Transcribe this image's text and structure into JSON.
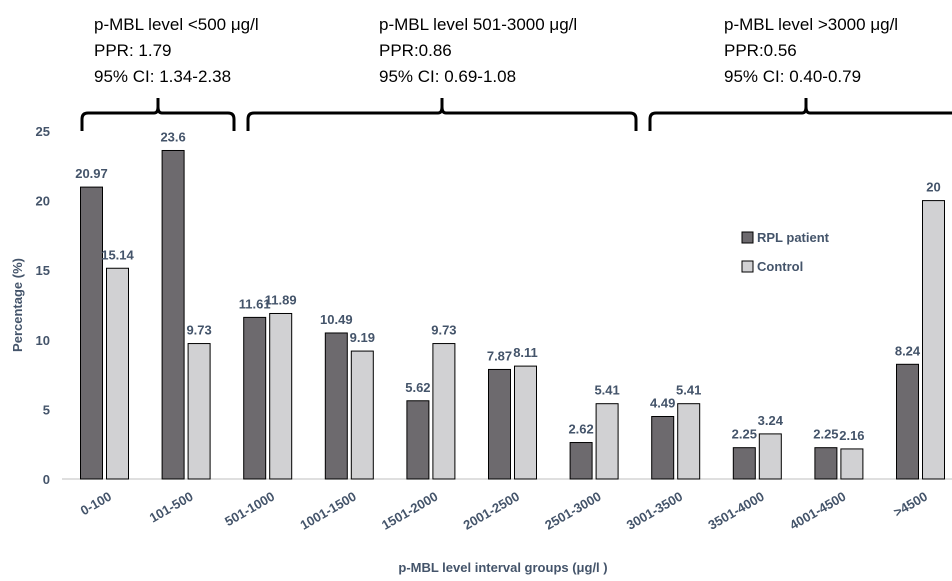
{
  "chart_data": {
    "type": "bar",
    "categories": [
      "0-100",
      "101-500",
      "501-1000",
      "1001-1500",
      "1501-2000",
      "2001-2500",
      "2501-3000",
      "3001-3500",
      "3501-4000",
      "4001-4500",
      ">4500"
    ],
    "series": [
      {
        "name": "RPL patient",
        "color": "#6d6a6e",
        "values": [
          20.97,
          23.6,
          11.61,
          10.49,
          5.62,
          7.87,
          2.62,
          4.49,
          2.25,
          2.25,
          8.24
        ],
        "labels": [
          "20.97",
          "23.6",
          "11.61",
          "10.49",
          "5.62",
          "7.87",
          "2.62",
          "4.49",
          "2.25",
          "2.25",
          "8.24"
        ]
      },
      {
        "name": "Control",
        "color": "#d1d1d3",
        "values": [
          15.14,
          9.73,
          11.89,
          9.19,
          9.73,
          8.11,
          5.41,
          5.41,
          3.24,
          2.16,
          20.0
        ],
        "labels": [
          "15.14",
          "9.73",
          "11.89",
          "9.19",
          "9.73",
          "8.11",
          "5.41",
          "5.41",
          "3.24",
          "2.16",
          "20"
        ]
      }
    ],
    "xlabel": "p-MBL level interval groups (μg/l )",
    "ylabel": "Percentage (%)",
    "ylim": [
      0,
      25
    ],
    "yticks": [
      0,
      5,
      10,
      15,
      20,
      25
    ],
    "grid": false,
    "legend_position": "upper-right",
    "annotations": [
      {
        "range": [
          "0-100",
          "101-500"
        ],
        "lines": [
          "p-MBL level <500 μg/l",
          "PPR: 1.79",
          "95% CI: 1.34-2.38"
        ]
      },
      {
        "range": [
          "501-1000",
          "2501-3000"
        ],
        "lines": [
          "p-MBL level 501-3000 μg/l",
          "PPR:0.86",
          "95% CI: 0.69-1.08"
        ]
      },
      {
        "range": [
          "3001-3500",
          ">4500"
        ],
        "lines": [
          "p-MBL level >3000 μg/l",
          "PPR:0.56",
          "95% CI: 0.40-0.79"
        ]
      }
    ]
  }
}
